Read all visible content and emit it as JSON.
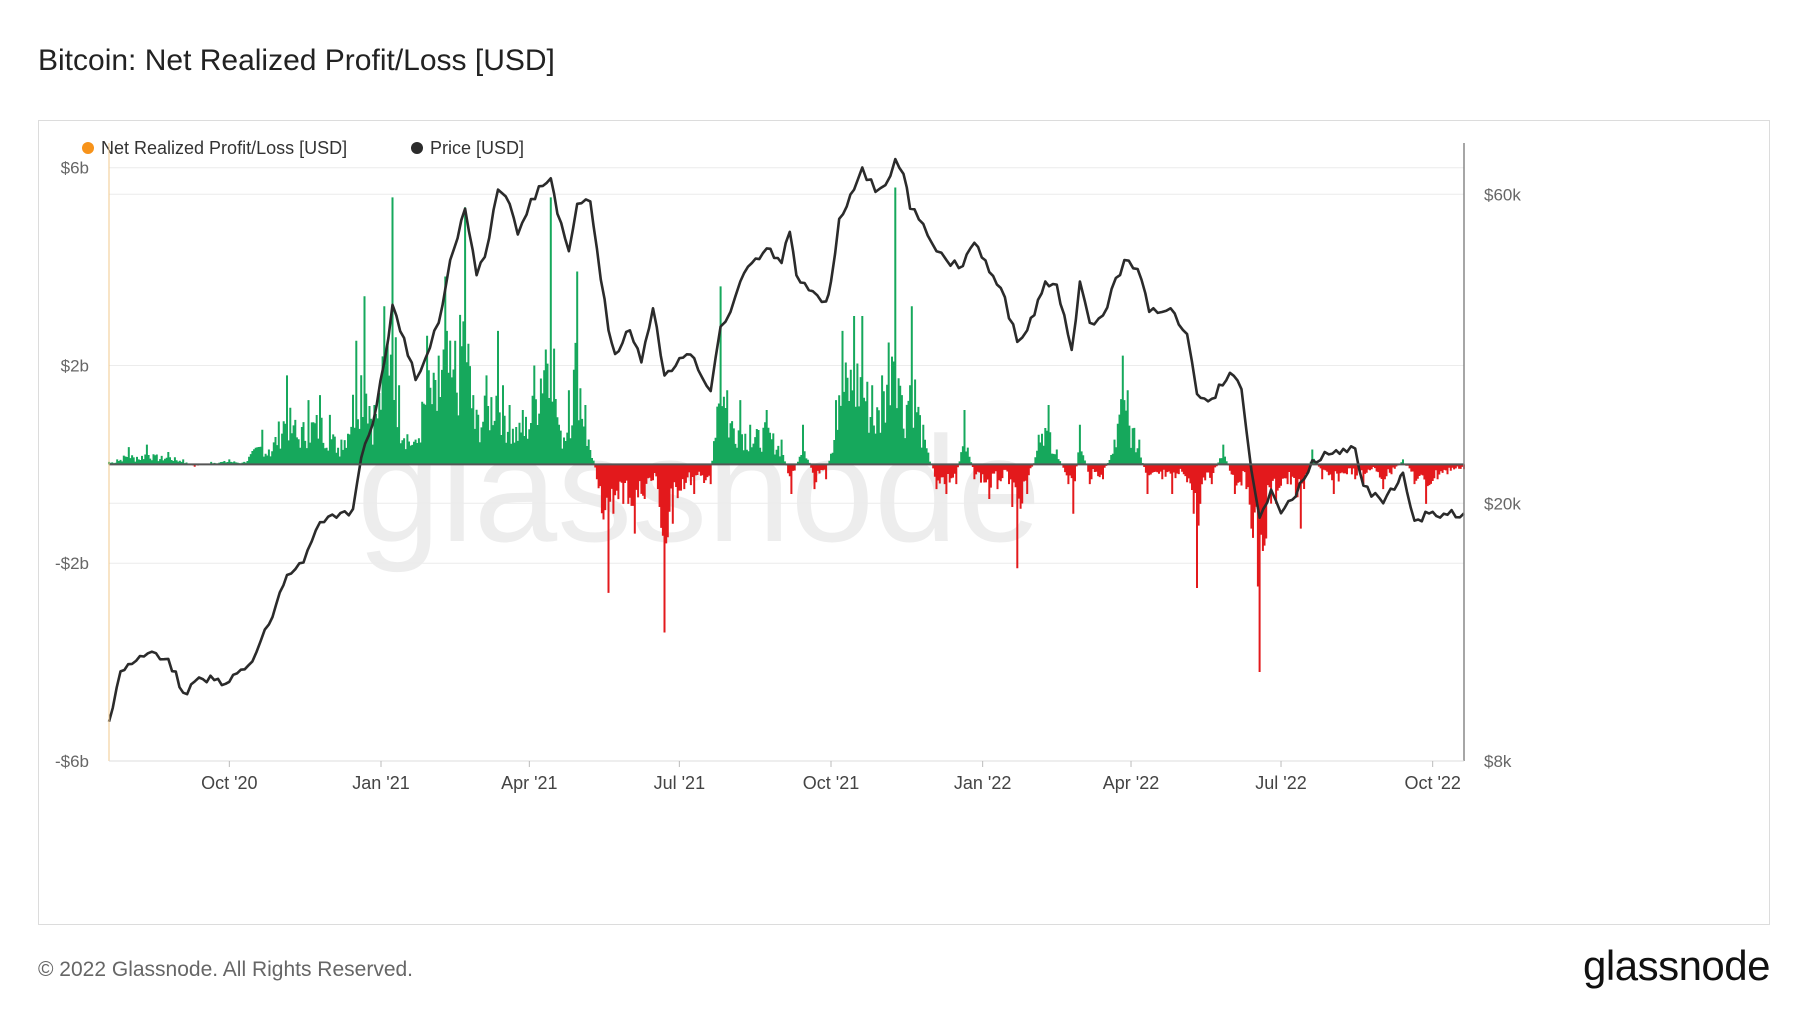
{
  "header": {
    "title": "Bitcoin: Net Realized Profit/Loss [USD]"
  },
  "watermark": "glassnode",
  "footer": {
    "copyright": "© 2022 Glassnode. All Rights Reserved.",
    "logo_text": "glassnode"
  },
  "colors": {
    "profit": "#16a85c",
    "loss": "#e3191c",
    "price": "#2b2b2b",
    "legend_nrpl": "#f7931a",
    "grid": "#ececec",
    "axis": "#999999"
  },
  "chart_data": {
    "type": "line",
    "title": "Bitcoin: Net Realized Profit/Loss [USD]",
    "legend": [
      {
        "label": "Net Realized Profit/Loss [USD]",
        "color": "#f7931a"
      },
      {
        "label": "Price [USD]",
        "color": "#2b2b2b"
      }
    ],
    "x_range": [
      "2020-07-20",
      "2022-10-20"
    ],
    "x_ticks": [
      {
        "label": "Oct '20",
        "date": "2020-10-01"
      },
      {
        "label": "Jan '21",
        "date": "2021-01-01"
      },
      {
        "label": "Apr '21",
        "date": "2021-04-01"
      },
      {
        "label": "Jul '21",
        "date": "2021-07-01"
      },
      {
        "label": "Oct '21",
        "date": "2021-10-01"
      },
      {
        "label": "Jan '22",
        "date": "2022-01-01"
      },
      {
        "label": "Apr '22",
        "date": "2022-04-01"
      },
      {
        "label": "Jul '22",
        "date": "2022-07-01"
      },
      {
        "label": "Oct '22",
        "date": "2022-10-01"
      }
    ],
    "left_axis": {
      "label": "Net Realized Profit/Loss [USD]",
      "unit": "USD billions",
      "range": [
        -6,
        6.5
      ],
      "ticks": [
        {
          "v": 6,
          "label": "$6b"
        },
        {
          "v": 2,
          "label": "$2b"
        },
        {
          "v": -2,
          "label": "-$2b"
        },
        {
          "v": -6,
          "label": "-$6b"
        }
      ]
    },
    "right_axis": {
      "label": "Price [USD]",
      "scale": "log",
      "range": [
        8000,
        72000
      ],
      "ticks": [
        {
          "v": 60000,
          "label": "$60k"
        },
        {
          "v": 20000,
          "label": "$20k"
        },
        {
          "v": 8000,
          "label": "$8k"
        }
      ]
    },
    "price_series": {
      "name": "Price [USD]",
      "points": [
        [
          "2020-07-20",
          9200
        ],
        [
          "2020-07-27",
          11000
        ],
        [
          "2020-08-03",
          11300
        ],
        [
          "2020-08-15",
          11800
        ],
        [
          "2020-08-25",
          11500
        ],
        [
          "2020-09-03",
          10200
        ],
        [
          "2020-09-15",
          10700
        ],
        [
          "2020-10-01",
          10600
        ],
        [
          "2020-10-15",
          11400
        ],
        [
          "2020-10-25",
          13000
        ],
        [
          "2020-11-05",
          15500
        ],
        [
          "2020-11-15",
          16200
        ],
        [
          "2020-11-25",
          18700
        ],
        [
          "2020-12-05",
          19000
        ],
        [
          "2020-12-15",
          19600
        ],
        [
          "2020-12-20",
          23500
        ],
        [
          "2020-12-27",
          26500
        ],
        [
          "2021-01-03",
          33000
        ],
        [
          "2021-01-08",
          40500
        ],
        [
          "2021-01-15",
          36000
        ],
        [
          "2021-01-22",
          31000
        ],
        [
          "2021-01-28",
          33500
        ],
        [
          "2021-02-05",
          38000
        ],
        [
          "2021-02-12",
          47500
        ],
        [
          "2021-02-21",
          57000
        ],
        [
          "2021-02-28",
          45000
        ],
        [
          "2021-03-05",
          48000
        ],
        [
          "2021-03-13",
          61000
        ],
        [
          "2021-03-20",
          58000
        ],
        [
          "2021-03-25",
          52000
        ],
        [
          "2021-04-02",
          59000
        ],
        [
          "2021-04-14",
          63500
        ],
        [
          "2021-04-18",
          56000
        ],
        [
          "2021-04-25",
          49000
        ],
        [
          "2021-04-30",
          58000
        ],
        [
          "2021-05-08",
          58500
        ],
        [
          "2021-05-12",
          49500
        ],
        [
          "2021-05-19",
          37000
        ],
        [
          "2021-05-23",
          34000
        ],
        [
          "2021-06-01",
          37000
        ],
        [
          "2021-06-08",
          33000
        ],
        [
          "2021-06-15",
          40000
        ],
        [
          "2021-06-22",
          31500
        ],
        [
          "2021-07-01",
          33500
        ],
        [
          "2021-07-10",
          33500
        ],
        [
          "2021-07-20",
          29800
        ],
        [
          "2021-07-26",
          37500
        ],
        [
          "2021-08-01",
          39500
        ],
        [
          "2021-08-07",
          44000
        ],
        [
          "2021-08-14",
          47000
        ],
        [
          "2021-08-23",
          49500
        ],
        [
          "2021-09-01",
          47000
        ],
        [
          "2021-09-06",
          52500
        ],
        [
          "2021-09-10",
          45000
        ],
        [
          "2021-09-20",
          42500
        ],
        [
          "2021-09-28",
          41000
        ],
        [
          "2021-10-01",
          44000
        ],
        [
          "2021-10-06",
          55000
        ],
        [
          "2021-10-15",
          61000
        ],
        [
          "2021-10-20",
          66000
        ],
        [
          "2021-10-28",
          60500
        ],
        [
          "2021-11-03",
          62000
        ],
        [
          "2021-11-09",
          68000
        ],
        [
          "2021-11-14",
          64500
        ],
        [
          "2021-11-18",
          57000
        ],
        [
          "2021-11-26",
          54000
        ],
        [
          "2021-12-04",
          49000
        ],
        [
          "2021-12-10",
          47500
        ],
        [
          "2021-12-20",
          46500
        ],
        [
          "2021-12-27",
          50500
        ],
        [
          "2022-01-05",
          45500
        ],
        [
          "2022-01-12",
          43000
        ],
        [
          "2022-01-22",
          35500
        ],
        [
          "2022-01-28",
          37000
        ],
        [
          "2022-02-08",
          44000
        ],
        [
          "2022-02-15",
          43500
        ],
        [
          "2022-02-24",
          34500
        ],
        [
          "2022-03-01",
          44000
        ],
        [
          "2022-03-07",
          38000
        ],
        [
          "2022-03-15",
          39000
        ],
        [
          "2022-03-28",
          47500
        ],
        [
          "2022-04-05",
          46000
        ],
        [
          "2022-04-12",
          39500
        ],
        [
          "2022-04-25",
          40000
        ],
        [
          "2022-05-05",
          36500
        ],
        [
          "2022-05-11",
          29500
        ],
        [
          "2022-05-20",
          29000
        ],
        [
          "2022-05-31",
          31800
        ],
        [
          "2022-06-07",
          30000
        ],
        [
          "2022-06-13",
          22500
        ],
        [
          "2022-06-18",
          19000
        ],
        [
          "2022-06-25",
          21000
        ],
        [
          "2022-07-01",
          19300
        ],
        [
          "2022-07-10",
          20500
        ],
        [
          "2022-07-20",
          23300
        ],
        [
          "2022-07-30",
          23800
        ],
        [
          "2022-08-10",
          24000
        ],
        [
          "2022-08-15",
          24300
        ],
        [
          "2022-08-20",
          21300
        ],
        [
          "2022-09-01",
          20000
        ],
        [
          "2022-09-10",
          21500
        ],
        [
          "2022-09-13",
          22300
        ],
        [
          "2022-09-20",
          18800
        ],
        [
          "2022-10-01",
          19400
        ],
        [
          "2022-10-10",
          19200
        ],
        [
          "2022-10-20",
          19300
        ]
      ]
    },
    "nrpl_series": {
      "name": "Net Realized Profit/Loss [USD]",
      "unit": "USD billions",
      "points": [
        [
          "2020-07-20",
          0.05
        ],
        [
          "2020-07-25",
          0.1
        ],
        [
          "2020-08-01",
          0.35
        ],
        [
          "2020-08-06",
          0.15
        ],
        [
          "2020-08-12",
          0.4
        ],
        [
          "2020-08-18",
          0.2
        ],
        [
          "2020-08-25",
          0.25
        ],
        [
          "2020-09-03",
          0.1
        ],
        [
          "2020-09-10",
          -0.05
        ],
        [
          "2020-09-20",
          0.05
        ],
        [
          "2020-10-01",
          0.1
        ],
        [
          "2020-10-10",
          0.05
        ],
        [
          "2020-10-21",
          0.7
        ],
        [
          "2020-10-25",
          0.3
        ],
        [
          "2020-11-05",
          1.8
        ],
        [
          "2020-11-10",
          0.9
        ],
        [
          "2020-11-18",
          1.3
        ],
        [
          "2020-11-25",
          1.4
        ],
        [
          "2020-12-01",
          1.0
        ],
        [
          "2020-12-08",
          0.5
        ],
        [
          "2020-12-17",
          2.5
        ],
        [
          "2020-12-22",
          3.4
        ],
        [
          "2020-12-28",
          1.2
        ],
        [
          "2021-01-03",
          3.2
        ],
        [
          "2021-01-08",
          5.4
        ],
        [
          "2021-01-12",
          1.6
        ],
        [
          "2021-01-22",
          0.5
        ],
        [
          "2021-01-29",
          2.6
        ],
        [
          "2021-02-05",
          2.2
        ],
        [
          "2021-02-09",
          3.8
        ],
        [
          "2021-02-15",
          2.5
        ],
        [
          "2021-02-21",
          5.2
        ],
        [
          "2021-02-26",
          1.4
        ],
        [
          "2021-03-06",
          1.8
        ],
        [
          "2021-03-13",
          2.7
        ],
        [
          "2021-03-20",
          1.2
        ],
        [
          "2021-03-28",
          1.1
        ],
        [
          "2021-04-04",
          2.0
        ],
        [
          "2021-04-14",
          5.4
        ],
        [
          "2021-04-19",
          0.8
        ],
        [
          "2021-04-25",
          1.5
        ],
        [
          "2021-04-30",
          3.9
        ],
        [
          "2021-05-05",
          1.2
        ],
        [
          "2021-05-12",
          -0.3
        ],
        [
          "2021-05-19",
          -2.6
        ],
        [
          "2021-05-22",
          -1.0
        ],
        [
          "2021-05-28",
          -0.8
        ],
        [
          "2021-06-04",
          -1.4
        ],
        [
          "2021-06-10",
          -0.7
        ],
        [
          "2021-06-18",
          -0.5
        ],
        [
          "2021-06-22",
          -3.4
        ],
        [
          "2021-06-27",
          -1.2
        ],
        [
          "2021-07-04",
          -0.5
        ],
        [
          "2021-07-10",
          -0.6
        ],
        [
          "2021-07-20",
          -0.4
        ],
        [
          "2021-07-26",
          3.6
        ],
        [
          "2021-07-30",
          1.5
        ],
        [
          "2021-08-07",
          1.3
        ],
        [
          "2021-08-13",
          0.8
        ],
        [
          "2021-08-23",
          1.1
        ],
        [
          "2021-09-01",
          0.5
        ],
        [
          "2021-09-07",
          -0.6
        ],
        [
          "2021-09-14",
          0.8
        ],
        [
          "2021-09-21",
          -0.5
        ],
        [
          "2021-09-28",
          -0.3
        ],
        [
          "2021-10-04",
          1.3
        ],
        [
          "2021-10-08",
          2.7
        ],
        [
          "2021-10-15",
          3.0
        ],
        [
          "2021-10-20",
          3.0
        ],
        [
          "2021-10-26",
          1.6
        ],
        [
          "2021-11-01",
          1.8
        ],
        [
          "2021-11-09",
          5.6
        ],
        [
          "2021-11-13",
          1.4
        ],
        [
          "2021-11-19",
          3.2
        ],
        [
          "2021-11-26",
          0.8
        ],
        [
          "2021-12-04",
          -0.5
        ],
        [
          "2021-12-10",
          -0.6
        ],
        [
          "2021-12-16",
          -0.4
        ],
        [
          "2021-12-21",
          1.1
        ],
        [
          "2021-12-27",
          -0.3
        ],
        [
          "2022-01-05",
          -0.7
        ],
        [
          "2022-01-10",
          -0.5
        ],
        [
          "2022-01-17",
          -0.4
        ],
        [
          "2022-01-22",
          -2.1
        ],
        [
          "2022-01-28",
          -0.6
        ],
        [
          "2022-02-04",
          0.6
        ],
        [
          "2022-02-10",
          1.2
        ],
        [
          "2022-02-15",
          0.3
        ],
        [
          "2022-02-22",
          -0.4
        ],
        [
          "2022-02-25",
          -1.0
        ],
        [
          "2022-03-01",
          0.8
        ],
        [
          "2022-03-07",
          -0.4
        ],
        [
          "2022-03-15",
          -0.3
        ],
        [
          "2022-03-22",
          0.5
        ],
        [
          "2022-03-27",
          2.2
        ],
        [
          "2022-03-30",
          1.5
        ],
        [
          "2022-04-06",
          0.5
        ],
        [
          "2022-04-11",
          -0.6
        ],
        [
          "2022-04-20",
          -0.3
        ],
        [
          "2022-04-26",
          -0.6
        ],
        [
          "2022-05-03",
          -0.2
        ],
        [
          "2022-05-09",
          -1.0
        ],
        [
          "2022-05-11",
          -2.5
        ],
        [
          "2022-05-13",
          -0.8
        ],
        [
          "2022-05-20",
          -0.4
        ],
        [
          "2022-05-27",
          0.4
        ],
        [
          "2022-06-03",
          -0.6
        ],
        [
          "2022-06-10",
          -0.5
        ],
        [
          "2022-06-13",
          -1.3
        ],
        [
          "2022-06-18",
          -4.2
        ],
        [
          "2022-06-22",
          -1.5
        ],
        [
          "2022-06-28",
          -0.8
        ],
        [
          "2022-07-05",
          -0.4
        ],
        [
          "2022-07-13",
          -1.3
        ],
        [
          "2022-07-20",
          0.3
        ],
        [
          "2022-07-26",
          -0.3
        ],
        [
          "2022-08-02",
          -0.6
        ],
        [
          "2022-08-10",
          -0.2
        ],
        [
          "2022-08-15",
          -0.3
        ],
        [
          "2022-08-20",
          -0.4
        ],
        [
          "2022-08-25",
          -0.1
        ],
        [
          "2022-09-01",
          -0.5
        ],
        [
          "2022-09-06",
          -0.2
        ],
        [
          "2022-09-13",
          0.1
        ],
        [
          "2022-09-20",
          -0.4
        ],
        [
          "2022-09-27",
          -0.8
        ],
        [
          "2022-10-04",
          -0.3
        ],
        [
          "2022-10-10",
          -0.2
        ],
        [
          "2022-10-20",
          -0.1
        ]
      ]
    }
  }
}
